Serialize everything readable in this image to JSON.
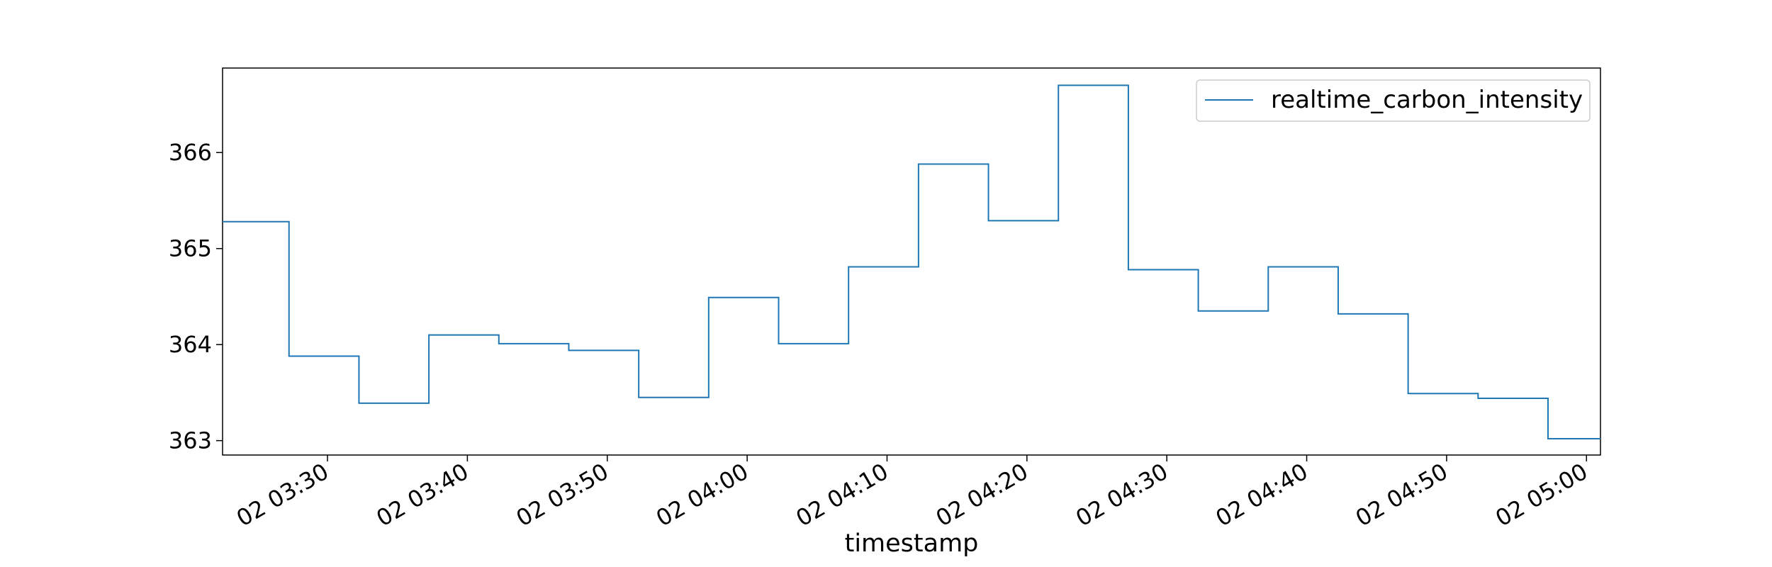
{
  "chart_data": {
    "type": "line",
    "title": "",
    "xlabel": "timestamp",
    "ylabel": "",
    "line_style": "steps-post",
    "grid": false,
    "legend_position": "top-right",
    "x_range": [
      "02 03:22:30",
      "02 05:01:00"
    ],
    "ylim": [
      362.85,
      366.88
    ],
    "yticks": [
      {
        "value": 363,
        "label": "363"
      },
      {
        "value": 364,
        "label": "364"
      },
      {
        "value": 365,
        "label": "365"
      },
      {
        "value": 366,
        "label": "366"
      }
    ],
    "xticks": [
      {
        "value": "02 03:30",
        "label": "02 03:30"
      },
      {
        "value": "02 03:40",
        "label": "02 03:40"
      },
      {
        "value": "02 03:50",
        "label": "02 03:50"
      },
      {
        "value": "02 04:00",
        "label": "02 04:00"
      },
      {
        "value": "02 04:10",
        "label": "02 04:10"
      },
      {
        "value": "02 04:20",
        "label": "02 04:20"
      },
      {
        "value": "02 04:30",
        "label": "02 04:30"
      },
      {
        "value": "02 04:40",
        "label": "02 04:40"
      },
      {
        "value": "02 04:50",
        "label": "02 04:50"
      },
      {
        "value": "02 05:00",
        "label": "02 05:00"
      }
    ],
    "series": [
      {
        "name": "realtime_carbon_intensity",
        "color": "#1f77b4",
        "points": [
          {
            "x": "02 03:22:30",
            "y": 365.28
          },
          {
            "x": "02 03:27:15",
            "y": 365.28
          },
          {
            "x": "02 03:27:15",
            "y": 363.88
          },
          {
            "x": "02 03:32:15",
            "y": 363.88
          },
          {
            "x": "02 03:32:15",
            "y": 363.39
          },
          {
            "x": "02 03:37:15",
            "y": 363.39
          },
          {
            "x": "02 03:37:15",
            "y": 364.1
          },
          {
            "x": "02 03:42:15",
            "y": 364.1
          },
          {
            "x": "02 03:42:15",
            "y": 364.01
          },
          {
            "x": "02 03:47:15",
            "y": 364.01
          },
          {
            "x": "02 03:47:15",
            "y": 363.94
          },
          {
            "x": "02 03:52:15",
            "y": 363.94
          },
          {
            "x": "02 03:52:15",
            "y": 363.45
          },
          {
            "x": "02 03:57:15",
            "y": 363.45
          },
          {
            "x": "02 03:57:15",
            "y": 364.49
          },
          {
            "x": "02 04:02:15",
            "y": 364.49
          },
          {
            "x": "02 04:02:15",
            "y": 364.01
          },
          {
            "x": "02 04:07:15",
            "y": 364.01
          },
          {
            "x": "02 04:07:15",
            "y": 364.81
          },
          {
            "x": "02 04:12:15",
            "y": 364.81
          },
          {
            "x": "02 04:12:15",
            "y": 365.88
          },
          {
            "x": "02 04:17:15",
            "y": 365.88
          },
          {
            "x": "02 04:17:15",
            "y": 365.29
          },
          {
            "x": "02 04:22:15",
            "y": 365.29
          },
          {
            "x": "02 04:22:15",
            "y": 366.7
          },
          {
            "x": "02 04:27:15",
            "y": 366.7
          },
          {
            "x": "02 04:27:15",
            "y": 364.78
          },
          {
            "x": "02 04:32:15",
            "y": 364.78
          },
          {
            "x": "02 04:32:15",
            "y": 364.35
          },
          {
            "x": "02 04:37:15",
            "y": 364.35
          },
          {
            "x": "02 04:37:15",
            "y": 364.81
          },
          {
            "x": "02 04:42:15",
            "y": 364.81
          },
          {
            "x": "02 04:42:15",
            "y": 364.32
          },
          {
            "x": "02 04:47:15",
            "y": 364.32
          },
          {
            "x": "02 04:47:15",
            "y": 363.49
          },
          {
            "x": "02 04:52:15",
            "y": 363.49
          },
          {
            "x": "02 04:52:15",
            "y": 363.44
          },
          {
            "x": "02 04:57:15",
            "y": 363.44
          },
          {
            "x": "02 04:57:15",
            "y": 363.02
          },
          {
            "x": "02 05:01:00",
            "y": 363.02
          }
        ]
      }
    ]
  }
}
